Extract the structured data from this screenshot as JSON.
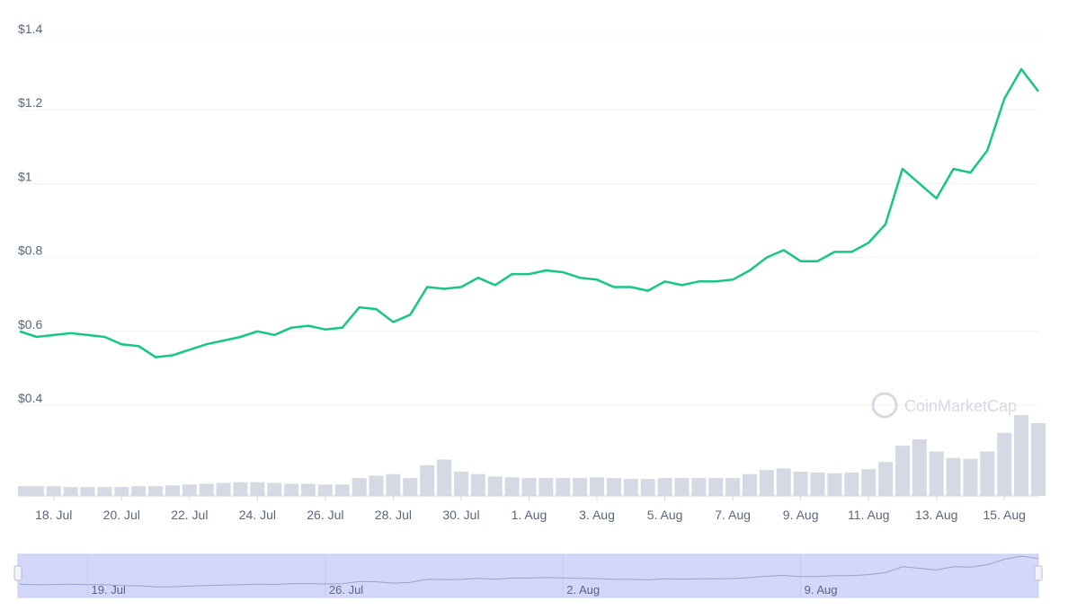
{
  "chart_data": {
    "type": "line",
    "color": "#16c784",
    "categories": [
      null,
      null,
      "18. Jul",
      null,
      null,
      null,
      "20. Jul",
      null,
      null,
      null,
      "22. Jul",
      null,
      null,
      null,
      "24. Jul",
      null,
      null,
      null,
      "26. Jul",
      null,
      null,
      null,
      "28. Jul",
      null,
      null,
      null,
      "30. Jul",
      null,
      null,
      null,
      "1. Aug",
      null,
      null,
      null,
      "3. Aug",
      null,
      null,
      null,
      "5. Aug",
      null,
      null,
      null,
      "7. Aug",
      null,
      null,
      null,
      "9. Aug",
      null,
      null,
      null,
      "11. Aug",
      null,
      null,
      null,
      "13. Aug",
      null,
      null,
      null,
      "15. Aug",
      null,
      null
    ],
    "values": [
      0.6,
      0.585,
      0.59,
      0.595,
      0.59,
      0.585,
      0.565,
      0.56,
      0.53,
      0.535,
      0.55,
      0.565,
      0.575,
      0.585,
      0.6,
      0.59,
      0.61,
      0.615,
      0.605,
      0.61,
      0.665,
      0.66,
      0.625,
      0.645,
      0.72,
      0.715,
      0.72,
      0.745,
      0.725,
      0.755,
      0.755,
      0.765,
      0.76,
      0.745,
      0.74,
      0.72,
      0.72,
      0.71,
      0.735,
      0.725,
      0.735,
      0.735,
      0.74,
      0.765,
      0.8,
      0.82,
      0.79,
      0.79,
      0.815,
      0.815,
      0.84,
      0.89,
      1.04,
      1.0,
      0.96,
      1.04,
      1.03,
      1.09,
      1.23,
      1.31,
      1.25
    ],
    "ylim": [
      0.4,
      1.4
    ],
    "yticks": [
      {
        "value": 0.4,
        "label": "$0.4"
      },
      {
        "value": 0.6,
        "label": "$0.6"
      },
      {
        "value": 0.8,
        "label": "$0.8"
      },
      {
        "value": 1,
        "label": "$1"
      },
      {
        "value": 1.2,
        "label": "$1.2"
      },
      {
        "value": 1.4,
        "label": "$1.4"
      }
    ],
    "grid": true,
    "volume": {
      "color": "#d5d9e3",
      "values": [
        0.12,
        0.12,
        0.12,
        0.11,
        0.11,
        0.11,
        0.11,
        0.12,
        0.12,
        0.13,
        0.14,
        0.15,
        0.16,
        0.17,
        0.17,
        0.16,
        0.15,
        0.15,
        0.14,
        0.14,
        0.22,
        0.25,
        0.27,
        0.22,
        0.38,
        0.45,
        0.3,
        0.27,
        0.24,
        0.23,
        0.22,
        0.22,
        0.22,
        0.22,
        0.23,
        0.22,
        0.21,
        0.21,
        0.22,
        0.22,
        0.22,
        0.22,
        0.22,
        0.27,
        0.32,
        0.34,
        0.3,
        0.29,
        0.28,
        0.29,
        0.33,
        0.42,
        0.62,
        0.7,
        0.55,
        0.47,
        0.46,
        0.55,
        0.78,
        1.0,
        0.9
      ]
    },
    "watermark": "CoinMarketCap",
    "navigator": {
      "categories": [
        null,
        null,
        null,
        null,
        "19. Jul",
        null,
        null,
        null,
        null,
        null,
        null,
        null,
        null,
        null,
        null,
        null,
        null,
        null,
        "26. Jul",
        null,
        null,
        null,
        null,
        null,
        null,
        null,
        null,
        null,
        null,
        null,
        null,
        null,
        "2. Aug",
        null,
        null,
        null,
        null,
        null,
        null,
        null,
        null,
        null,
        null,
        null,
        null,
        null,
        "9. Aug",
        null,
        null,
        null,
        null,
        null,
        null,
        null,
        null,
        null,
        null,
        null,
        null,
        null,
        null
      ]
    }
  }
}
